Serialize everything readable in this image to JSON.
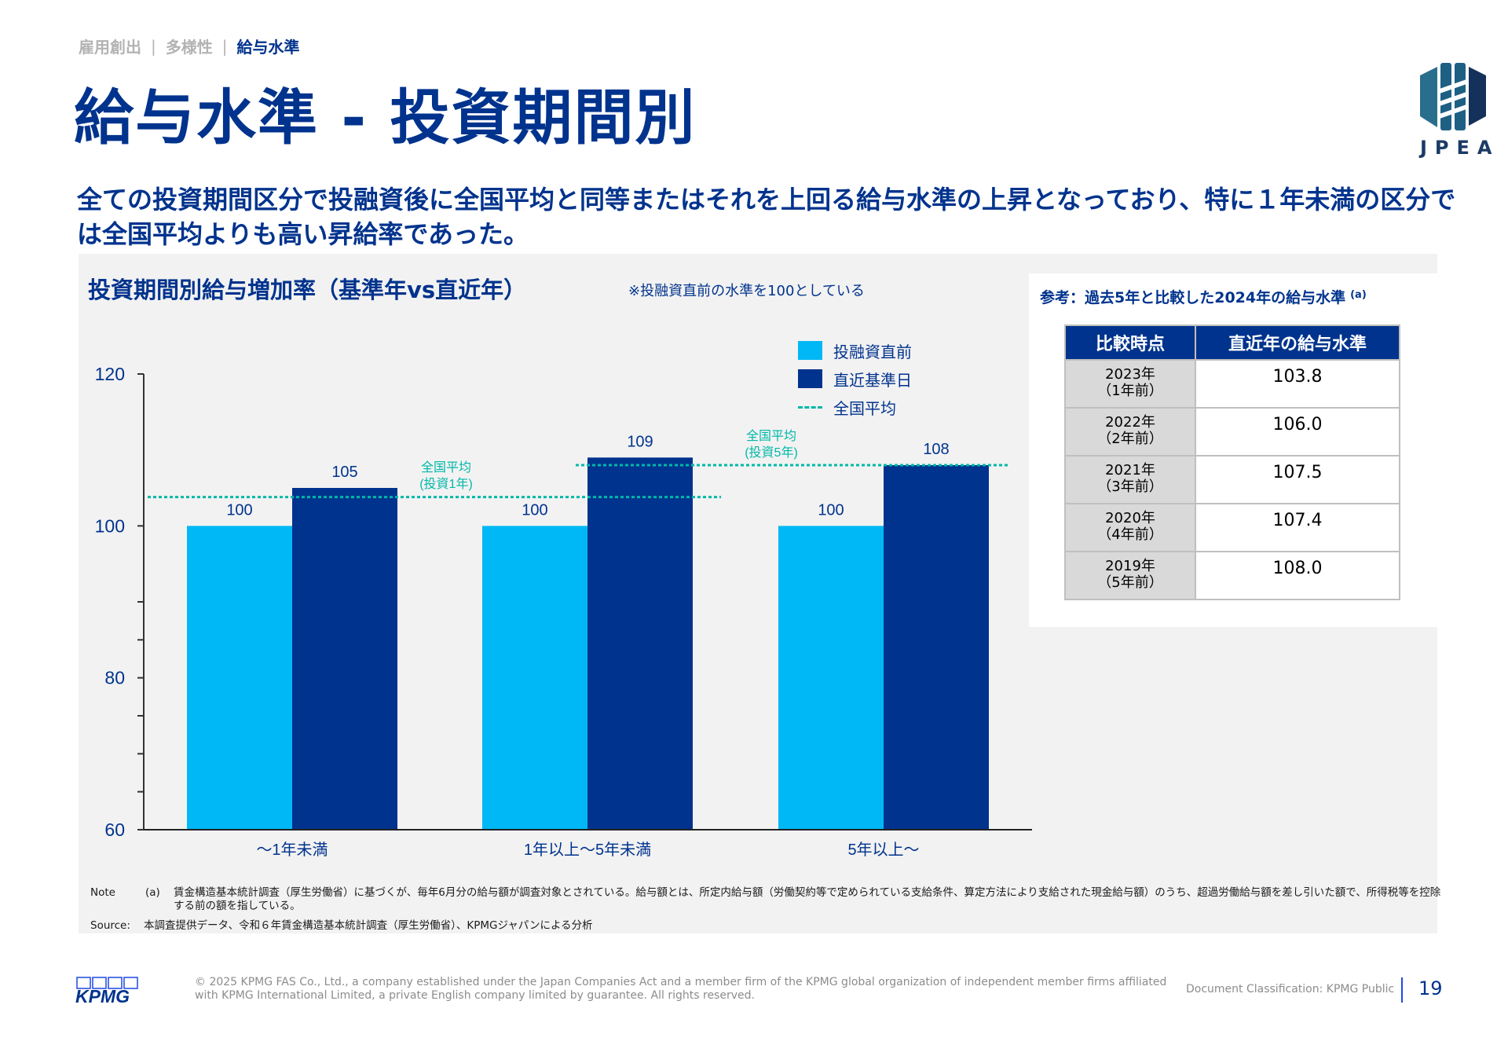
{
  "breadcrumb": {
    "items": [
      "雇用創出",
      "多様性",
      "給与水準"
    ],
    "separator": "|",
    "active_index": 2
  },
  "page_title": "給与水準 - 投資期間別",
  "logo": {
    "text": "JPEA",
    "icon": "jpea-logo-icon"
  },
  "subtitle": "全ての投資期間区分で投融資後に全国平均と同等またはそれを上回る給与水準の上昇となっており、特に１年未満の区分では全国平均よりも高い昇給率であった。",
  "colors": {
    "brand": "#00338D",
    "pre_investment": "#00B8F5",
    "latest": "#00338D",
    "national_avg": "#00B8A9",
    "panel_bg": "#F2F2F2"
  },
  "chart": {
    "title": "投資期間別給与増加率（基準年vs直近年）",
    "note": "※投融資直前の水準を100としている",
    "legend": {
      "pre": "投融資直前",
      "latest": "直近基準日",
      "avg": "全国平均"
    },
    "avg_annotations": {
      "one_year": [
        "全国平均",
        "(投資1年)"
      ],
      "five_year": [
        "全国平均",
        "(投資5年)"
      ]
    }
  },
  "chart_data": {
    "type": "bar",
    "title": "投資期間別給与増加率（基準年vs直近年）",
    "subtitle": "※投融資直前の水準を100としている",
    "xlabel": "",
    "ylabel": "",
    "ylim": [
      60,
      120
    ],
    "yticks": [
      60,
      80,
      100,
      120
    ],
    "minor_yticks": [
      65,
      70,
      75,
      85,
      90
    ],
    "grid": false,
    "legend_position": "top-right",
    "categories": [
      "～1年未満",
      "1年以上～5年未満",
      "5年以上～"
    ],
    "series": [
      {
        "name": "投融資直前",
        "values": [
          100,
          100,
          100
        ],
        "labels": [
          "100",
          "100",
          "100"
        ]
      },
      {
        "name": "直近基準日",
        "values": [
          105,
          109,
          108
        ],
        "labels": [
          "105",
          "109",
          "108"
        ]
      }
    ],
    "reference_lines": [
      {
        "name": "全国平均(投資1年)",
        "label": [
          "全国平均",
          "(投資1年)"
        ],
        "value": 103.8,
        "style": "dashed",
        "span_categories": [
          0,
          1
        ]
      },
      {
        "name": "全国平均(投資5年)",
        "label": [
          "全国平均",
          "(投資5年)"
        ],
        "value": 108.0,
        "style": "dashed",
        "span_categories": [
          1,
          2
        ]
      }
    ]
  },
  "reference": {
    "title": "参考：過去5年と比較した2024年の給与水準",
    "title_footnote": "(a)",
    "headers": [
      "比較時点",
      "直近年の給与水準"
    ],
    "rows": [
      {
        "year": "2023年",
        "ago": "（1年前）",
        "value": "103.8"
      },
      {
        "year": "2022年",
        "ago": "（2年前）",
        "value": "106.0"
      },
      {
        "year": "2021年",
        "ago": "（3年前）",
        "value": "107.5"
      },
      {
        "year": "2020年",
        "ago": "（4年前）",
        "value": "107.4"
      },
      {
        "year": "2019年",
        "ago": "（5年前）",
        "value": "108.0"
      }
    ]
  },
  "notes": {
    "note_label": "Note",
    "note_marker": "(a)",
    "note_text": "賃金構造基本統計調査（厚生労働省）に基づくが、毎年6月分の給与額が調査対象とされている。給与額とは、所定内給与額（労働契約等で定められている支給条件、算定方法により支給された現金給与額）のうち、超過労働給与額を差し引いた額で、所得税等を控除する前の額を指している。",
    "source_label": "Source:",
    "source_text": "本調査提供データ、令和６年賃金構造基本統計調査（厚生労働省）、KPMGジャパンによる分析"
  },
  "footer": {
    "logo_text": "KPMG",
    "copyright": "© 2025 KPMG FAS Co., Ltd., a company established under the Japan Companies Act and a member firm of the KPMG global organization of independent member firms affiliated with KPMG International Limited, a private English company limited by guarantee. All rights reserved.",
    "classification": "Document Classification: KPMG Public",
    "page_number": "19"
  }
}
